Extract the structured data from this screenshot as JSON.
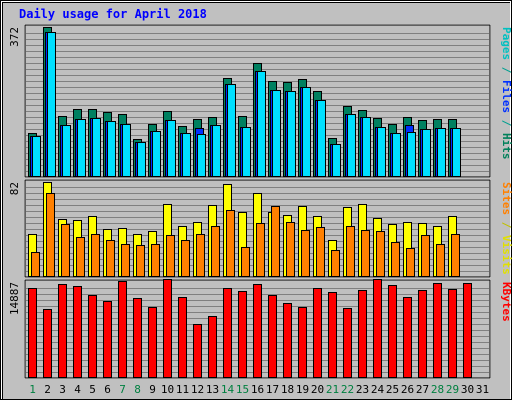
{
  "chart_data": {
    "title": "Daily usage for April 2018",
    "type": "bar",
    "x": [
      "1",
      "2",
      "3",
      "4",
      "5",
      "6",
      "7",
      "8",
      "9",
      "10",
      "11",
      "12",
      "13",
      "14",
      "15",
      "16",
      "17",
      "18",
      "19",
      "20",
      "21",
      "22",
      "23",
      "24",
      "25",
      "26",
      "27",
      "28",
      "29",
      "30",
      "31"
    ],
    "weekend_days": [
      "1",
      "7",
      "8",
      "14",
      "15",
      "21",
      "22",
      "28",
      "29"
    ],
    "panels": [
      {
        "name": "pages-files-hits",
        "max_label": "372",
        "ymax": 372,
        "axis_label_parts": [
          {
            "text": "Pages",
            "color": "#00c0c0"
          },
          {
            "text": " / ",
            "color": "#00a090"
          },
          {
            "text": "Files",
            "color": "#0030ff"
          },
          {
            "text": " / ",
            "color": "#00a090"
          },
          {
            "text": "Hits",
            "color": "#00805a"
          }
        ],
        "series": [
          {
            "name": "Hits",
            "color": "#008060",
            "values": [
              108,
              372,
              149,
              167,
              168,
              161,
              154,
              93,
              131,
              163,
              126,
              142,
              147,
              244,
              149,
              283,
              236,
              234,
              243,
              212,
              95,
              176,
              166,
              146,
              129,
              148,
              140,
              143,
              142,
              0,
              0
            ]
          },
          {
            "name": "Files",
            "color": "#0030ff",
            "values": [
              100,
              360,
              128,
              143,
              146,
              138,
              131,
              86,
              113,
              140,
              108,
              120,
              127,
              229,
              123,
              262,
              215,
              212,
              223,
              190,
              80,
              156,
              148,
              123,
              107,
              127,
              118,
              121,
              120,
              0,
              0
            ]
          },
          {
            "name": "Pages",
            "color": "#00e0ff",
            "values": [
              100,
              360,
              128,
              143,
              146,
              138,
              131,
              86,
              113,
              140,
              108,
              105,
              127,
              229,
              123,
              262,
              215,
              212,
              223,
              190,
              80,
              156,
              148,
              123,
              107,
              110,
              118,
              121,
              120,
              0,
              0
            ]
          }
        ]
      },
      {
        "name": "sites-visits",
        "max_label": "82",
        "ymax": 82,
        "axis_label_parts": [
          {
            "text": "Sites",
            "color": "#ff8000"
          },
          {
            "text": " / ",
            "color": "#c0c000"
          },
          {
            "text": "Visits",
            "color": "#e0e000"
          }
        ],
        "series": [
          {
            "name": "Visits",
            "color": "#ffff00",
            "values": [
              37,
              82,
              50,
              49,
              52,
              41,
              42,
              37,
              39,
              63,
              44,
              47,
              62,
              80,
              56,
              72,
              56,
              53,
              61,
              52,
              31,
              60,
              63,
              51,
              45,
              47,
              46,
              44,
              52,
              0,
              0
            ]
          },
          {
            "name": "Sites",
            "color": "#ff8000",
            "values": [
              21,
              72,
              45,
              34,
              37,
              31,
              28,
              27,
              28,
              36,
              31,
              37,
              44,
              58,
              25,
              46,
              61,
              47,
              40,
              43,
              23,
              44,
              40,
              39,
              30,
              24,
              36,
              28,
              37,
              0,
              0
            ]
          }
        ]
      },
      {
        "name": "kbytes",
        "max_label": "14887",
        "ymax": 14887,
        "axis_label_parts": [
          {
            "text": "KBytes",
            "color": "#ff0000"
          }
        ],
        "series": [
          {
            "name": "KBytes",
            "color": "#ff0000",
            "values": [
              14000,
              10700,
              14600,
              14200,
              12900,
              11900,
              15100,
              12400,
              11000,
              15300,
              12500,
              8300,
              9500,
              13900,
              13400,
              14500,
              12800,
              11600,
              10900,
              13900,
              13300,
              10800,
              13600,
              15300,
              14400,
              12500,
              13700,
              14800,
              13800,
              14800,
              0
            ]
          }
        ]
      }
    ]
  }
}
